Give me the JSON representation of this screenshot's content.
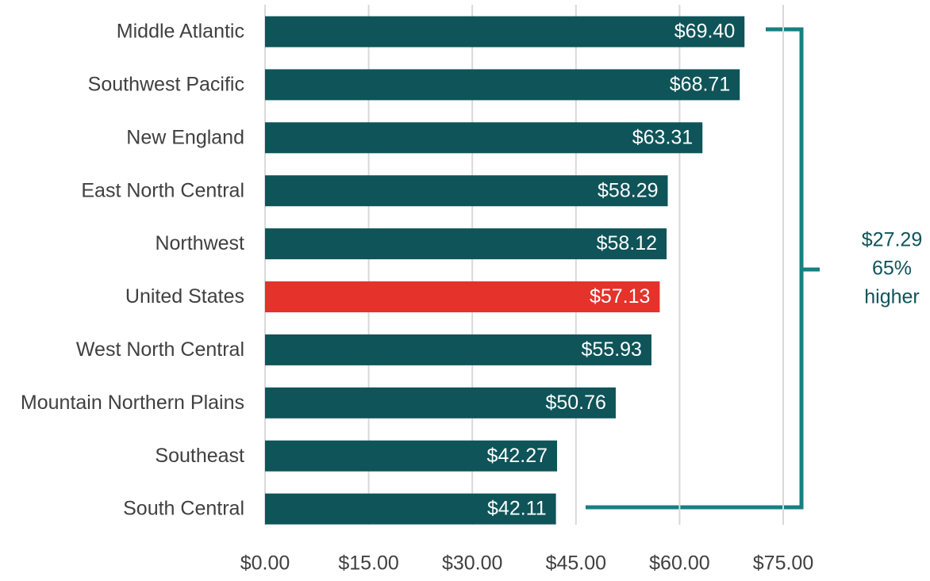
{
  "chart_data": {
    "type": "barh",
    "categories": [
      "Middle Atlantic",
      "Southwest Pacific",
      "New England",
      "East North Central",
      "Northwest",
      "United States",
      "West North Central",
      "Mountain Northern Plains",
      "Southeast",
      "South Central"
    ],
    "values": [
      69.4,
      68.71,
      63.31,
      58.29,
      58.12,
      57.13,
      55.93,
      50.76,
      42.27,
      42.11
    ],
    "value_labels": [
      "$69.40",
      "$68.71",
      "$63.31",
      "$58.29",
      "$58.12",
      "$57.13",
      "$55.93",
      "$50.76",
      "$42.27",
      "$42.11"
    ],
    "colors": [
      "#0e5459",
      "#0e5459",
      "#0e5459",
      "#0e5459",
      "#0e5459",
      "#e5322b",
      "#0e5459",
      "#0e5459",
      "#0e5459",
      "#0e5459"
    ],
    "xlim": [
      0,
      75
    ],
    "xticks": [
      {
        "value": 0,
        "label": "$0.00"
      },
      {
        "value": 15,
        "label": "$15.00"
      },
      {
        "value": 30,
        "label": "$30.00"
      },
      {
        "value": 45,
        "label": "$45.00"
      },
      {
        "value": 60,
        "label": "$60.00"
      },
      {
        "value": 75,
        "label": "$75.00"
      }
    ],
    "grid": true,
    "annotation": [
      "$27.29",
      "65%",
      "higher"
    ]
  }
}
